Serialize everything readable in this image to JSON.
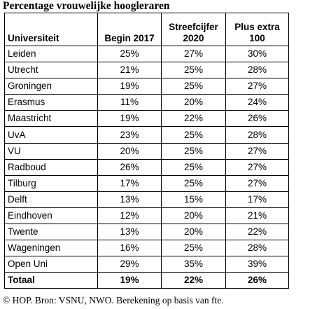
{
  "chart_data": {
    "type": "table",
    "title": "Percentage vrouwelijke hoogleraren",
    "columns": [
      "Universiteit",
      "Begin 2017",
      "Streefcijfer 2020",
      "Plus extra 100"
    ],
    "rows": [
      {
        "name": "Leiden",
        "values": [
          "25%",
          "27%",
          "30%"
        ]
      },
      {
        "name": "Utrecht",
        "values": [
          "21%",
          "25%",
          "28%"
        ]
      },
      {
        "name": "Groningen",
        "values": [
          "19%",
          "25%",
          "27%"
        ]
      },
      {
        "name": "Erasmus",
        "values": [
          "11%",
          "20%",
          "24%"
        ]
      },
      {
        "name": "Maastricht",
        "values": [
          "19%",
          "22%",
          "26%"
        ]
      },
      {
        "name": "UvA",
        "values": [
          "23%",
          "25%",
          "28%"
        ]
      },
      {
        "name": "VU",
        "values": [
          "20%",
          "25%",
          "27%"
        ]
      },
      {
        "name": "Radboud",
        "values": [
          "26%",
          "25%",
          "27%"
        ]
      },
      {
        "name": "Tilburg",
        "values": [
          "17%",
          "25%",
          "27%"
        ]
      },
      {
        "name": "Delft",
        "values": [
          "13%",
          "15%",
          "17%"
        ]
      },
      {
        "name": "Eindhoven",
        "values": [
          "12%",
          "20%",
          "21%"
        ]
      },
      {
        "name": "Twente",
        "values": [
          "13%",
          "20%",
          "22%"
        ]
      },
      {
        "name": "Wageningen",
        "values": [
          "16%",
          "25%",
          "28%"
        ]
      },
      {
        "name": "Open Uni",
        "values": [
          "29%",
          "35%",
          "39%"
        ]
      }
    ],
    "total": {
      "name": "Totaal",
      "values": [
        "19%",
        "22%",
        "26%"
      ]
    },
    "source": "© HOP. Bron: VSNU, NWO. Berekening op basis van fte."
  }
}
